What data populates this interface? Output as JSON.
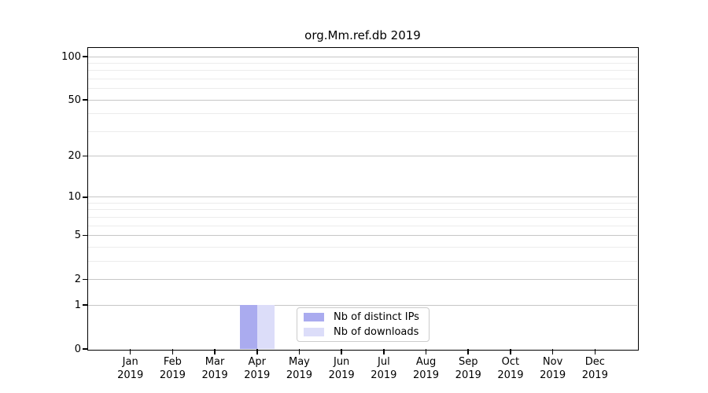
{
  "chart_data": {
    "type": "bar",
    "title": "org.Mm.ref.db 2019",
    "year_label": "2019",
    "categories": [
      "Jan",
      "Feb",
      "Mar",
      "Apr",
      "May",
      "Jun",
      "Jul",
      "Aug",
      "Sep",
      "Oct",
      "Nov",
      "Dec"
    ],
    "series": [
      {
        "name": "Nb of distinct IPs",
        "color": "#aaabef",
        "values": [
          0,
          0,
          0,
          1,
          0,
          0,
          0,
          0,
          0,
          0,
          0,
          0
        ]
      },
      {
        "name": "Nb of downloads",
        "color": "#dcddf9",
        "values": [
          0,
          0,
          0,
          1,
          0,
          0,
          0,
          0,
          0,
          0,
          0,
          0
        ]
      }
    ],
    "yscale": "log1p",
    "ylim": [
      0,
      115
    ],
    "y_major_ticks": [
      0,
      1,
      2,
      5,
      10,
      20,
      50,
      100
    ],
    "y_minor_ticks": [
      3,
      4,
      6,
      7,
      8,
      9,
      30,
      40,
      60,
      70,
      80,
      90
    ],
    "grid": "horizontal",
    "legend_position": "lower center"
  },
  "colors": {
    "major_grid": "#c6c6c6",
    "minor_grid": "#ececec",
    "axis": "#000000",
    "legend_border": "#cccccc",
    "background": "#ffffff"
  }
}
